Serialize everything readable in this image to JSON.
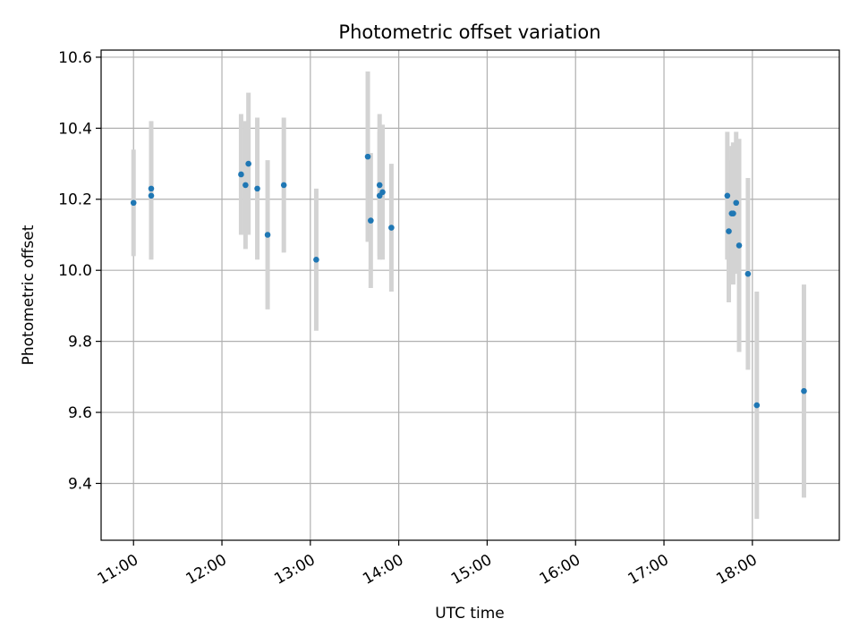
{
  "chart_data": {
    "type": "scatter",
    "title": "Photometric offset variation",
    "xlabel": "UTC time",
    "ylabel": "Photometric offset",
    "x_ticks": [
      "11:00",
      "12:00",
      "13:00",
      "14:00",
      "15:00",
      "16:00",
      "17:00",
      "18:00"
    ],
    "y_ticks": [
      "9.4",
      "9.6",
      "9.8",
      "10.0",
      "10.2",
      "10.4",
      "10.6"
    ],
    "xlim": [
      "10:38",
      "18:59"
    ],
    "ylim": [
      9.24,
      10.62
    ],
    "grid": true,
    "marker_color": "#1f77b4",
    "errorbar_color": "#d3d3d3",
    "points": [
      {
        "x": "11:00",
        "y": 10.19,
        "err": 0.15
      },
      {
        "x": "11:12",
        "y": 10.23,
        "err": 0.19
      },
      {
        "x": "11:12",
        "y": 10.21,
        "err": 0.18
      },
      {
        "x": "12:13",
        "y": 10.27,
        "err": 0.17
      },
      {
        "x": "12:16",
        "y": 10.24,
        "err": 0.18
      },
      {
        "x": "12:18",
        "y": 10.3,
        "err": 0.2
      },
      {
        "x": "12:24",
        "y": 10.23,
        "err": 0.2
      },
      {
        "x": "12:31",
        "y": 10.1,
        "err": 0.21
      },
      {
        "x": "12:42",
        "y": 10.24,
        "err": 0.19
      },
      {
        "x": "13:04",
        "y": 10.03,
        "err": 0.2
      },
      {
        "x": "13:39",
        "y": 10.32,
        "err": 0.24
      },
      {
        "x": "13:41",
        "y": 10.14,
        "err": 0.19
      },
      {
        "x": "13:47",
        "y": 10.24,
        "err": 0.2
      },
      {
        "x": "13:47",
        "y": 10.21,
        "err": 0.18
      },
      {
        "x": "13:49",
        "y": 10.22,
        "err": 0.19
      },
      {
        "x": "13:55",
        "y": 10.12,
        "err": 0.18
      },
      {
        "x": "17:43",
        "y": 10.21,
        "err": 0.18
      },
      {
        "x": "17:44",
        "y": 10.11,
        "err": 0.2
      },
      {
        "x": "17:46",
        "y": 10.16,
        "err": 0.19
      },
      {
        "x": "17:47",
        "y": 10.16,
        "err": 0.2
      },
      {
        "x": "17:49",
        "y": 10.19,
        "err": 0.2
      },
      {
        "x": "17:51",
        "y": 10.07,
        "err": 0.3
      },
      {
        "x": "17:57",
        "y": 9.99,
        "err": 0.27
      },
      {
        "x": "18:03",
        "y": 9.62,
        "err": 0.32
      },
      {
        "x": "18:35",
        "y": 9.66,
        "err": 0.3
      }
    ]
  }
}
